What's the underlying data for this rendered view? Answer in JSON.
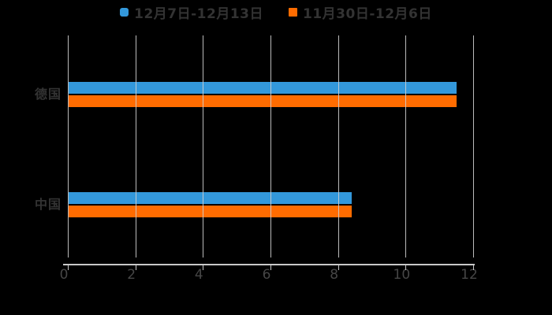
{
  "chart_data": {
    "type": "bar",
    "orientation": "horizontal",
    "title": "",
    "xlabel": "",
    "ylabel": "",
    "categories": [
      "德国",
      "中国"
    ],
    "series": [
      {
        "name": "12月7日-12月13日",
        "color": "#3398DB",
        "values": [
          11.5,
          8.4
        ]
      },
      {
        "name": "11月30日-12月6日",
        "color": "#FF6C00",
        "values": [
          11.5,
          8.4
        ]
      }
    ],
    "x_ticks": [
      0,
      2,
      4,
      6,
      8,
      10,
      12
    ],
    "xlim": [
      0,
      12
    ],
    "grid": "vertical-gridlines-over-bars",
    "legend_position": "top-center",
    "colors": {
      "background": "#000000",
      "grid_line": "#CFCFCF",
      "axis_line": "#C8C8C8",
      "tick_label_text": "#464646",
      "category_label_text": "#333333",
      "legend_text": "#333333"
    }
  }
}
